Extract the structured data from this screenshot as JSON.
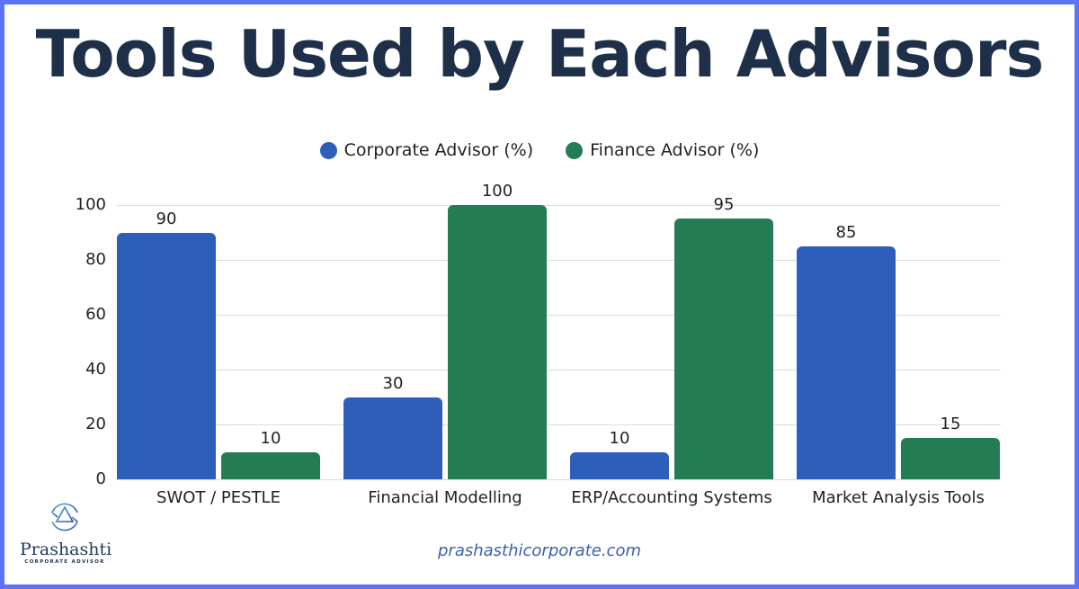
{
  "title": "Tools Used by Each Advisors",
  "legend": [
    {
      "label": "Corporate Advisor (%)",
      "color": "#2d5fba"
    },
    {
      "label": "Finance Advisor (%)",
      "color": "#247c55"
    }
  ],
  "footer": {
    "url": "prashasthicorporate.com"
  },
  "logo": {
    "name": "Prashashti",
    "subtitle": "CORPORATE ADVISOR"
  },
  "chart_data": {
    "type": "bar",
    "title": "Tools Used by Each Advisors",
    "xlabel": "",
    "ylabel": "",
    "ylim": [
      0,
      100
    ],
    "yticks": [
      0,
      20,
      40,
      60,
      80,
      100
    ],
    "grid": true,
    "legend_position": "top",
    "categories": [
      "SWOT / PESTLE",
      "Financial Modelling",
      "ERP/Accounting Systems",
      "Market Analysis Tools"
    ],
    "series": [
      {
        "name": "Corporate Advisor (%)",
        "color": "#2d5fba",
        "values": [
          90,
          30,
          10,
          85
        ]
      },
      {
        "name": "Finance Advisor (%)",
        "color": "#247c55",
        "values": [
          10,
          100,
          95,
          15
        ]
      }
    ],
    "data_labels": true
  }
}
